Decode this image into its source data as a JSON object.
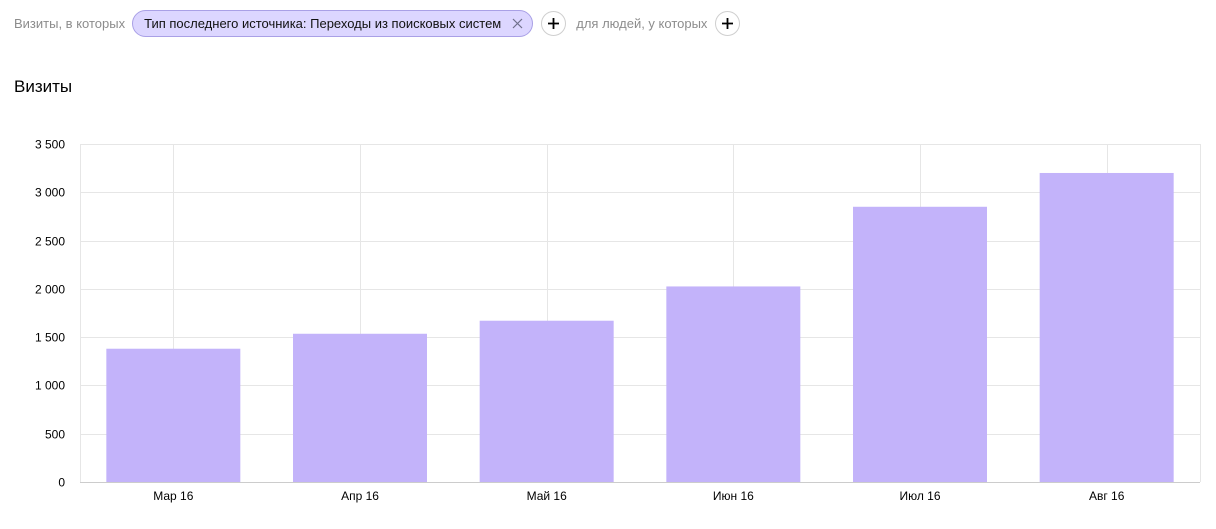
{
  "filters": {
    "visits_prefix": "Визиты, в которых",
    "chip_label": "Тип последнего источника: Переходы из поисковых систем",
    "people_prefix": "для людей, у которых"
  },
  "title": "Визиты",
  "colors": {
    "bar": "#c3b3fa",
    "grid": "#e6e6e6",
    "chip_bg": "#dcd6ff",
    "chip_border": "#a9a0e6"
  },
  "chart_data": {
    "type": "bar",
    "title": "Визиты",
    "categories": [
      "Мар 16",
      "Апр 16",
      "Май 16",
      "Июн 16",
      "Июл 16",
      "Авг 16"
    ],
    "values": [
      1380,
      1535,
      1670,
      2025,
      2850,
      3200
    ],
    "ylim": [
      0,
      3500
    ],
    "yticks": [
      0,
      500,
      1000,
      1500,
      2000,
      2500,
      3000,
      3500
    ],
    "ytick_labels": [
      "0",
      "500",
      "1 000",
      "1 500",
      "2 000",
      "2 500",
      "3 000",
      "3 500"
    ],
    "grid": true,
    "legend": "none"
  }
}
